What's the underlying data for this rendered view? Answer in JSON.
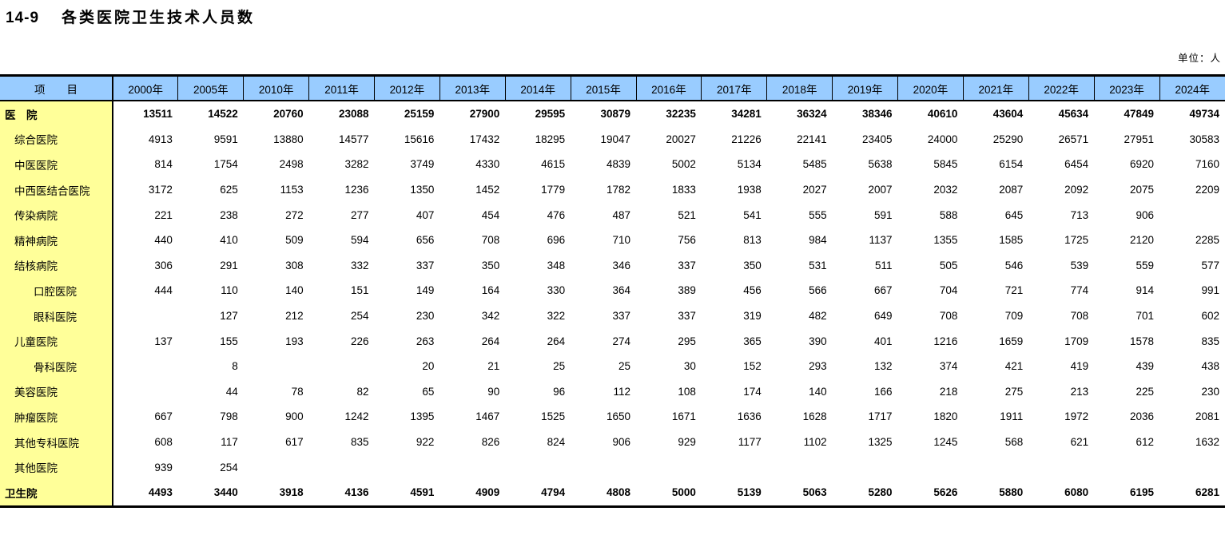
{
  "title": {
    "prefix": "14-9",
    "text": "各类医院卫生技术人员数"
  },
  "unit_note": "单位：人",
  "colors": {
    "header_bg": "#99CCFF",
    "label_column_bg": "#FFFF99",
    "border": "#000000",
    "text": "#000000"
  },
  "table": {
    "corner_label": "项　　目",
    "columns": [
      "2000年",
      "2005年",
      "2010年",
      "2011年",
      "2012年",
      "2013年",
      "2014年",
      "2015年",
      "2016年",
      "2017年",
      "2018年",
      "2019年",
      "2020年",
      "2021年",
      "2022年",
      "2023年",
      "2024年"
    ],
    "rows": [
      {
        "label": "医　院",
        "indent": 0,
        "bold": true,
        "values": [
          "13511",
          "14522",
          "20760",
          "23088",
          "25159",
          "27900",
          "29595",
          "30879",
          "32235",
          "34281",
          "36324",
          "38346",
          "40610",
          "43604",
          "45634",
          "47849",
          "49734"
        ]
      },
      {
        "label": "综合医院",
        "indent": 1,
        "bold": false,
        "values": [
          "4913",
          "9591",
          "13880",
          "14577",
          "15616",
          "17432",
          "18295",
          "19047",
          "20027",
          "21226",
          "22141",
          "23405",
          "24000",
          "25290",
          "26571",
          "27951",
          "30583"
        ]
      },
      {
        "label": "中医医院",
        "indent": 1,
        "bold": false,
        "values": [
          "814",
          "1754",
          "2498",
          "3282",
          "3749",
          "4330",
          "4615",
          "4839",
          "5002",
          "5134",
          "5485",
          "5638",
          "5845",
          "6154",
          "6454",
          "6920",
          "7160"
        ]
      },
      {
        "label": "中西医结合医院",
        "indent": 1,
        "bold": false,
        "values": [
          "3172",
          "625",
          "1153",
          "1236",
          "1350",
          "1452",
          "1779",
          "1782",
          "1833",
          "1938",
          "2027",
          "2007",
          "2032",
          "2087",
          "2092",
          "2075",
          "2209"
        ]
      },
      {
        "label": "传染病院",
        "indent": 1,
        "bold": false,
        "values": [
          "221",
          "238",
          "272",
          "277",
          "407",
          "454",
          "476",
          "487",
          "521",
          "541",
          "555",
          "591",
          "588",
          "645",
          "713",
          "906",
          ""
        ]
      },
      {
        "label": "精神病院",
        "indent": 1,
        "bold": false,
        "values": [
          "440",
          "410",
          "509",
          "594",
          "656",
          "708",
          "696",
          "710",
          "756",
          "813",
          "984",
          "1137",
          "1355",
          "1585",
          "1725",
          "2120",
          "2285"
        ]
      },
      {
        "label": "结核病院",
        "indent": 1,
        "bold": false,
        "values": [
          "306",
          "291",
          "308",
          "332",
          "337",
          "350",
          "348",
          "346",
          "337",
          "350",
          "531",
          "511",
          "505",
          "546",
          "539",
          "559",
          "577"
        ]
      },
      {
        "label": "口腔医院",
        "indent": 2,
        "bold": false,
        "values": [
          "444",
          "110",
          "140",
          "151",
          "149",
          "164",
          "330",
          "364",
          "389",
          "456",
          "566",
          "667",
          "704",
          "721",
          "774",
          "914",
          "991"
        ]
      },
      {
        "label": "眼科医院",
        "indent": 2,
        "bold": false,
        "values": [
          "",
          "127",
          "212",
          "254",
          "230",
          "342",
          "322",
          "337",
          "337",
          "319",
          "482",
          "649",
          "708",
          "709",
          "708",
          "701",
          "602"
        ]
      },
      {
        "label": "儿童医院",
        "indent": 1,
        "bold": false,
        "values": [
          "137",
          "155",
          "193",
          "226",
          "263",
          "264",
          "264",
          "274",
          "295",
          "365",
          "390",
          "401",
          "1216",
          "1659",
          "1709",
          "1578",
          "835"
        ]
      },
      {
        "label": "骨科医院",
        "indent": 2,
        "bold": false,
        "values": [
          "",
          "8",
          "",
          "",
          "20",
          "21",
          "25",
          "25",
          "30",
          "152",
          "293",
          "132",
          "374",
          "421",
          "419",
          "439",
          "438"
        ]
      },
      {
        "label": "美容医院",
        "indent": 1,
        "bold": false,
        "values": [
          "",
          "44",
          "78",
          "82",
          "65",
          "90",
          "96",
          "112",
          "108",
          "174",
          "140",
          "166",
          "218",
          "275",
          "213",
          "225",
          "230"
        ]
      },
      {
        "label": "肿瘤医院",
        "indent": 1,
        "bold": false,
        "values": [
          "667",
          "798",
          "900",
          "1242",
          "1395",
          "1467",
          "1525",
          "1650",
          "1671",
          "1636",
          "1628",
          "1717",
          "1820",
          "1911",
          "1972",
          "2036",
          "2081"
        ]
      },
      {
        "label": "其他专科医院",
        "indent": 1,
        "bold": false,
        "values": [
          "608",
          "117",
          "617",
          "835",
          "922",
          "826",
          "824",
          "906",
          "929",
          "1177",
          "1102",
          "1325",
          "1245",
          "568",
          "621",
          "612",
          "1632"
        ]
      },
      {
        "label": "其他医院",
        "indent": 1,
        "bold": false,
        "values": [
          "939",
          "254",
          "",
          "",
          "",
          "",
          "",
          "",
          "",
          "",
          "",
          "",
          "",
          "",
          "",
          "",
          ""
        ]
      },
      {
        "label": "卫生院",
        "indent": 0,
        "bold": true,
        "values": [
          "4493",
          "3440",
          "3918",
          "4136",
          "4591",
          "4909",
          "4794",
          "4808",
          "5000",
          "5139",
          "5063",
          "5280",
          "5626",
          "5880",
          "6080",
          "6195",
          "6281"
        ]
      }
    ]
  }
}
